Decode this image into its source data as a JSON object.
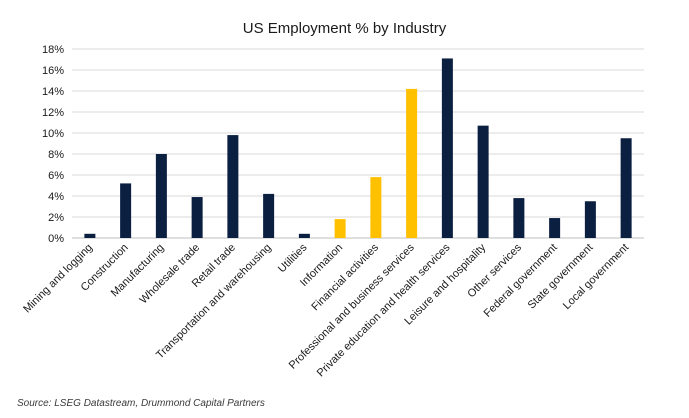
{
  "chart_data": {
    "type": "bar",
    "title": "US Employment % by Industry",
    "xlabel": "",
    "ylabel": "",
    "ylim": [
      0,
      18
    ],
    "y_ticks": [
      "0%",
      "2%",
      "4%",
      "6%",
      "8%",
      "10%",
      "12%",
      "14%",
      "16%",
      "18%"
    ],
    "y_tick_values": [
      0,
      2,
      4,
      6,
      8,
      10,
      12,
      14,
      16,
      18
    ],
    "grid": true,
    "legend": "none",
    "categories": [
      "Mining and logging",
      "Construction",
      "Manufacturing",
      "Wholesale trade",
      "Retail trade",
      "Transportation and warehousing",
      "Utilities",
      "Information",
      "Financial activities",
      "Professional and business services",
      "Private education and health services",
      "Leisure and hospitality",
      "Other services",
      "Federal government",
      "State government",
      "Local government"
    ],
    "values": [
      0.4,
      5.2,
      8.0,
      3.9,
      9.8,
      4.2,
      0.4,
      1.8,
      5.8,
      14.2,
      17.1,
      10.7,
      3.8,
      1.9,
      3.5,
      9.5
    ],
    "highlighted": [
      false,
      false,
      false,
      false,
      false,
      false,
      false,
      true,
      true,
      true,
      false,
      false,
      false,
      false,
      false,
      false
    ],
    "colors": {
      "default": "#0b1f41",
      "highlight": "#ffc000",
      "grid": "#d9d9d9",
      "axis": "#bfbfbf"
    }
  },
  "source_note": "Source: LSEG Datastream, Drummond Capital Partners"
}
